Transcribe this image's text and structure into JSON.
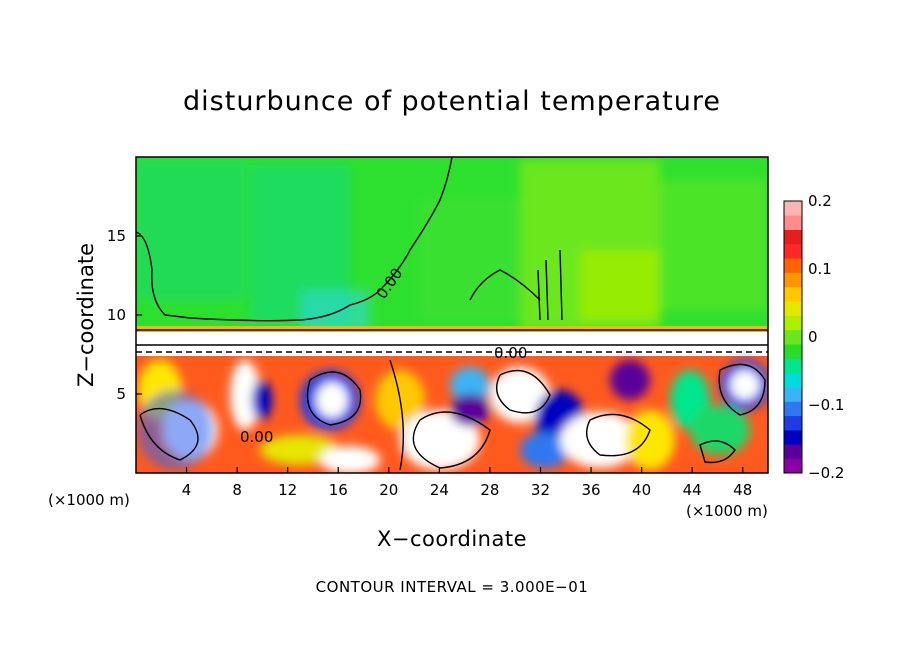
{
  "chart_data": {
    "type": "heatmap",
    "title": "disturbunce of potential temperature",
    "xlabel": "X−coordinate",
    "ylabel": "Z−coordinate",
    "x_unit": "(×1000 m)",
    "x_unit_right": "(×1000 m)",
    "x_ticks": [
      "4",
      "8",
      "12",
      "16",
      "20",
      "24",
      "28",
      "32",
      "36",
      "40",
      "44",
      "48"
    ],
    "x_tick_values": [
      4,
      8,
      12,
      16,
      20,
      24,
      28,
      32,
      36,
      40,
      44,
      48
    ],
    "y_ticks": [
      "5",
      "10",
      "15"
    ],
    "y_tick_values": [
      5,
      10,
      15
    ],
    "xlim": [
      0,
      50
    ],
    "ylim": [
      0,
      20
    ],
    "contour_labels": [
      "0.00",
      "0.00",
      "0.00"
    ],
    "colorbar": {
      "ticks": [
        "0.2",
        "0.1",
        "0",
        "−0.1",
        "−0.2"
      ],
      "tick_values": [
        0.2,
        0.1,
        0,
        -0.1,
        -0.2
      ],
      "range": [
        -0.2,
        0.2
      ],
      "colors": [
        "#8b00a0",
        "#5a009a",
        "#0000c0",
        "#1e3ce6",
        "#2f78f0",
        "#3ab4f5",
        "#00dcdc",
        "#00e68c",
        "#28dc28",
        "#6ae61e",
        "#aaf000",
        "#e6e600",
        "#ffc800",
        "#ff9600",
        "#ff6400",
        "#ff2828",
        "#e61e1e",
        "#ff8c8c",
        "#ffb4b4"
      ]
    },
    "footer": "CONTOUR INTERVAL = 3.000E−01"
  }
}
